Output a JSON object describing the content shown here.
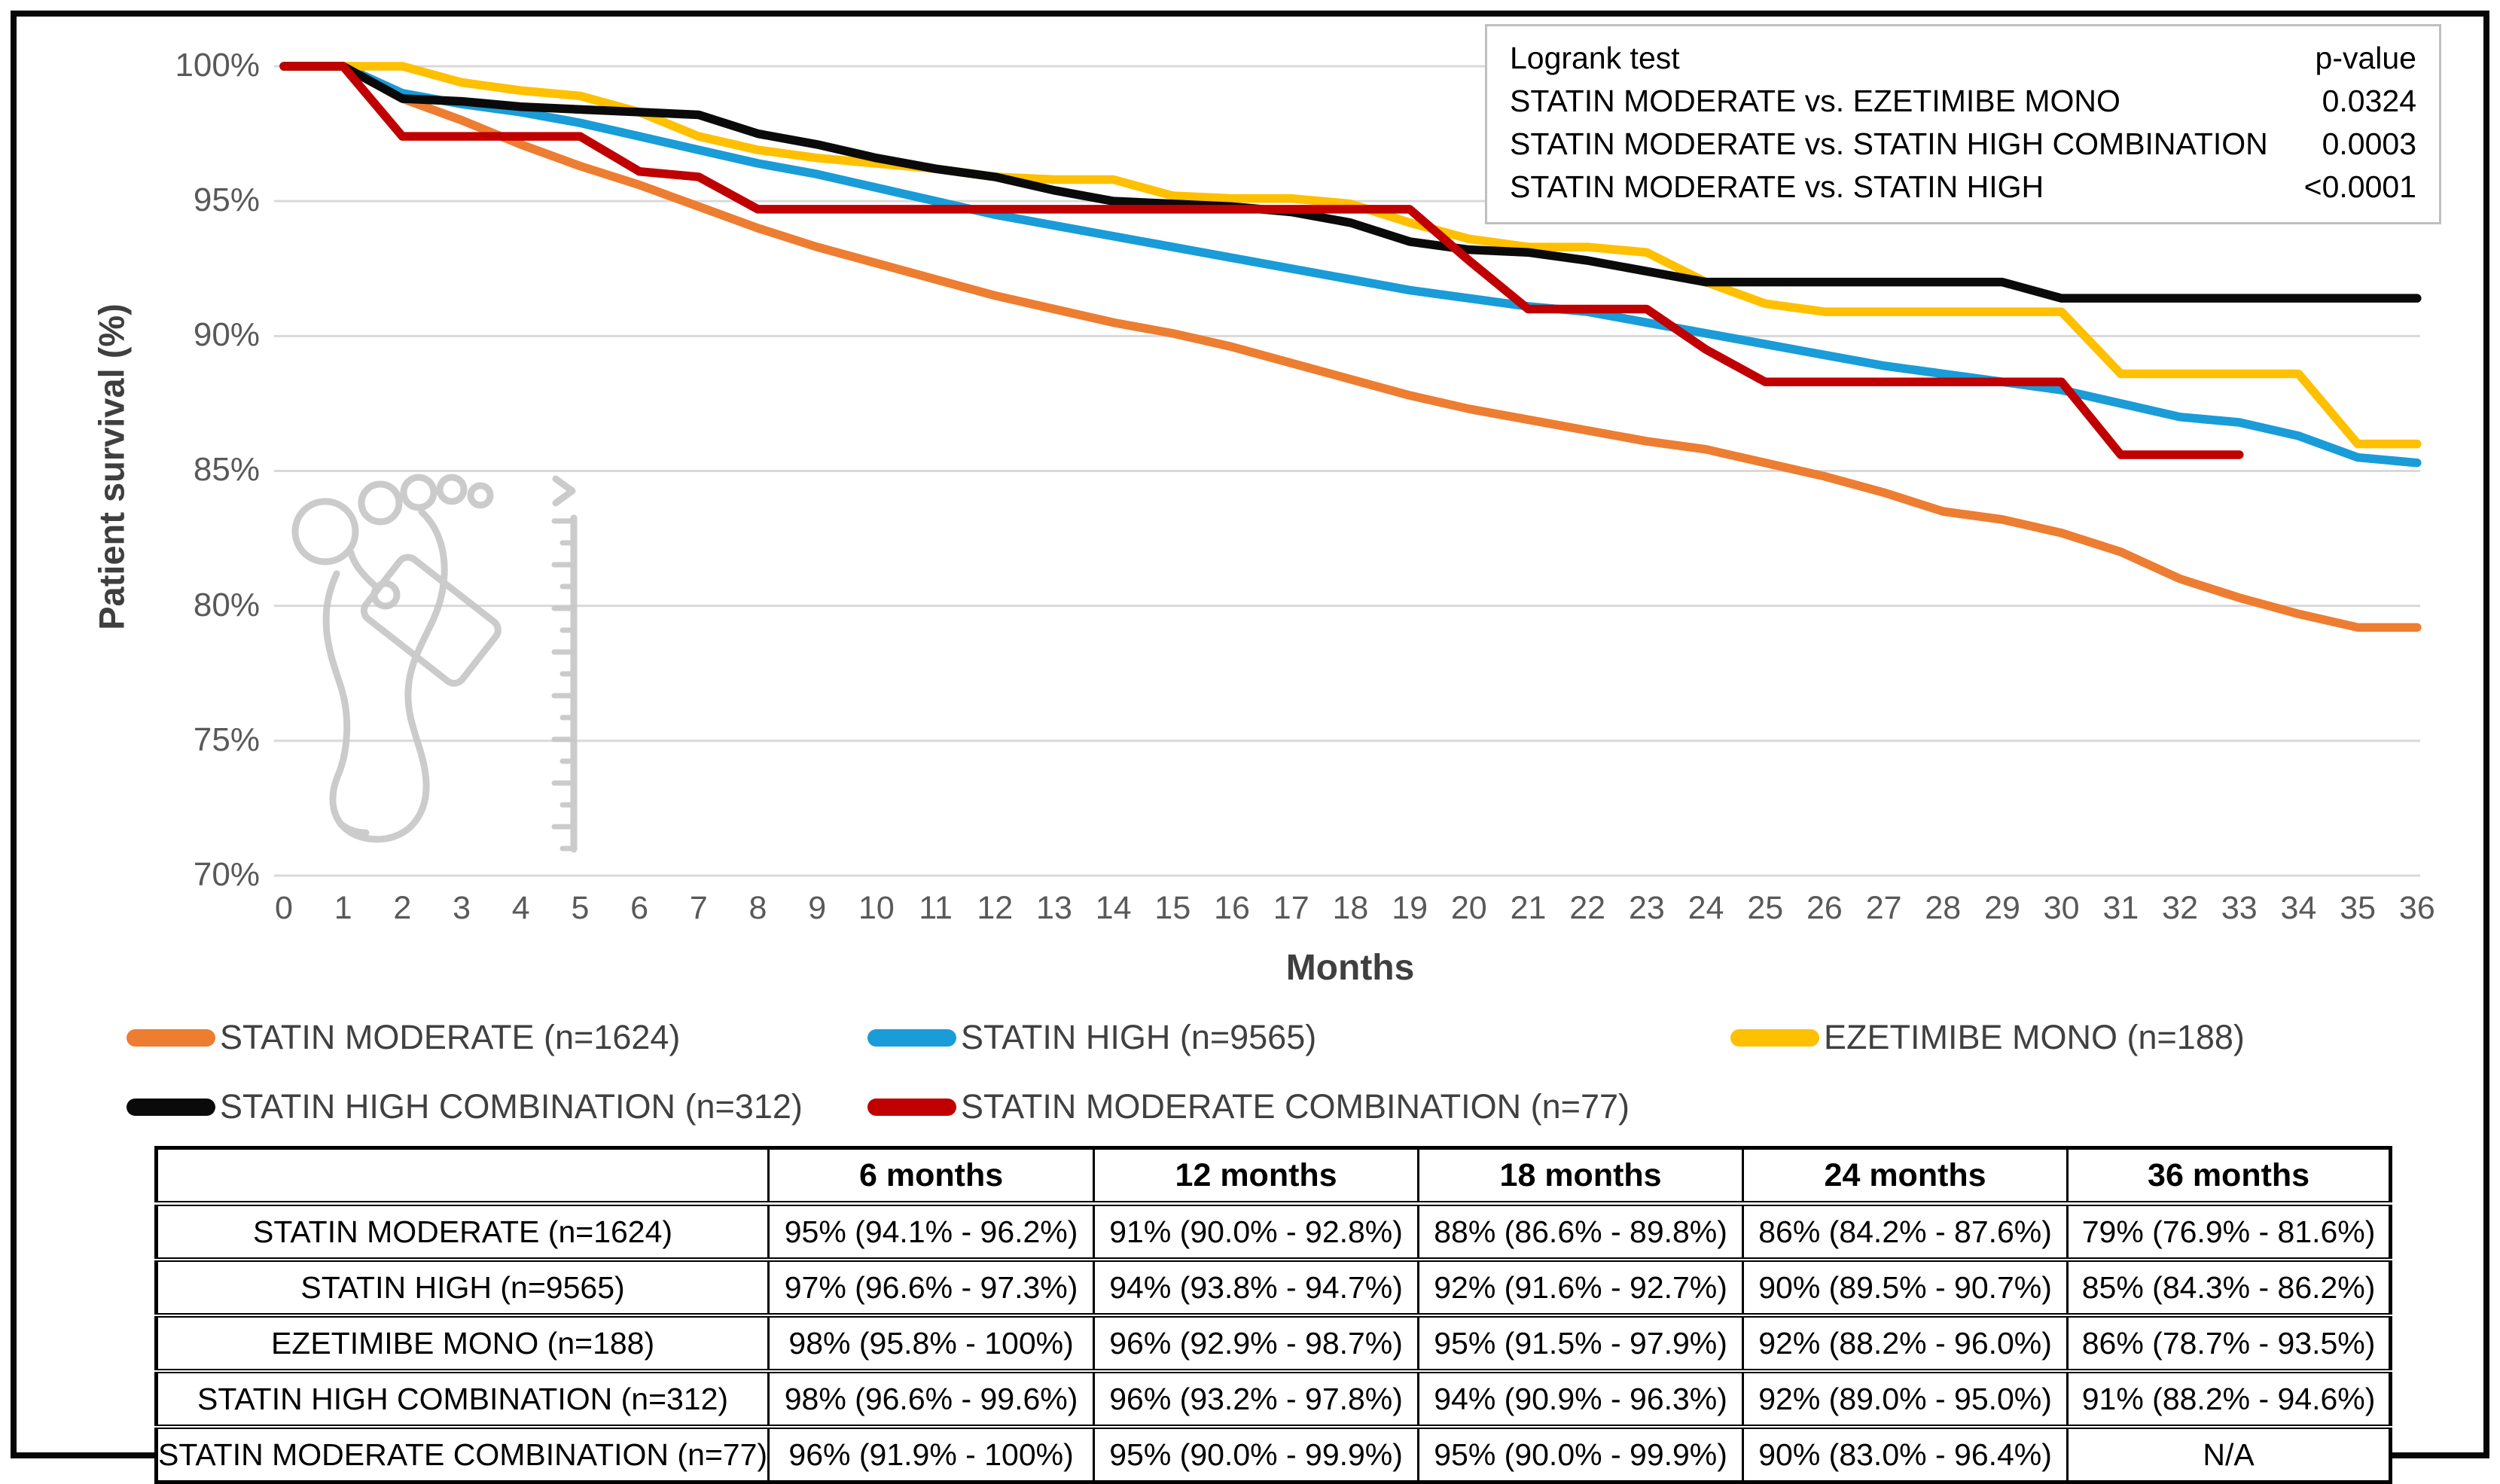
{
  "colors": {
    "statin_moderate": "#ED7D31",
    "statin_high": "#199CD8",
    "ezetimibe_mono": "#FFC000",
    "statin_high_combination": "#0A0A0A",
    "statin_moderate_combination": "#C00000",
    "gridline": "#D9D9D9",
    "tick_text": "#595959",
    "axis_title_text": "#3F3F3F",
    "watermark": "#C6C6C6",
    "logrank_border": "#BFBFBF"
  },
  "chart_data": {
    "type": "line",
    "title": "",
    "xlabel": "Months",
    "ylabel": "Patient survival (%)",
    "ylim": [
      70,
      100
    ],
    "y_tick_values": [
      100,
      95,
      90,
      85,
      80,
      75,
      70
    ],
    "y_tick_labels": [
      "100%",
      "95%",
      "90%",
      "85%",
      "80%",
      "75%",
      "70%"
    ],
    "x_ticks": [
      0,
      1,
      2,
      3,
      4,
      5,
      6,
      7,
      8,
      9,
      10,
      11,
      12,
      13,
      14,
      15,
      16,
      17,
      18,
      19,
      20,
      21,
      22,
      23,
      24,
      25,
      26,
      27,
      28,
      29,
      30,
      31,
      32,
      33,
      34,
      35,
      36
    ],
    "grid": "horizontal-only",
    "legend_position": "below",
    "series": [
      {
        "name": "STATIN MODERATE (n=1624)",
        "color_key": "statin_moderate",
        "values": [
          100,
          100,
          98.8,
          98.0,
          97.1,
          96.3,
          95.6,
          94.8,
          94.0,
          93.3,
          92.7,
          92.1,
          91.5,
          91.0,
          90.5,
          90.1,
          89.6,
          89.0,
          88.4,
          87.8,
          87.3,
          86.9,
          86.5,
          86.1,
          85.8,
          85.3,
          84.8,
          84.2,
          83.5,
          83.2,
          82.7,
          82.0,
          81.0,
          80.3,
          79.7,
          79.2,
          79.2
        ]
      },
      {
        "name": "STATIN HIGH (n=9565)",
        "color_key": "statin_high",
        "values": [
          100,
          100,
          99.0,
          98.6,
          98.3,
          97.9,
          97.4,
          96.9,
          96.4,
          96.0,
          95.5,
          95.0,
          94.5,
          94.1,
          93.7,
          93.3,
          92.9,
          92.5,
          92.1,
          91.7,
          91.4,
          91.1,
          90.9,
          90.5,
          90.1,
          89.7,
          89.3,
          88.9,
          88.6,
          88.3,
          88.0,
          87.5,
          87.0,
          86.8,
          86.3,
          85.5,
          85.3
        ]
      },
      {
        "name": "EZETIMIBE MONO (n=188)",
        "color_key": "ezetimibe_mono",
        "values": [
          100,
          100,
          100,
          99.4,
          99.1,
          98.9,
          98.3,
          97.4,
          96.9,
          96.6,
          96.4,
          96.2,
          95.9,
          95.8,
          95.8,
          95.2,
          95.1,
          95.1,
          94.9,
          94.2,
          93.6,
          93.3,
          93.3,
          93.1,
          92.0,
          91.2,
          90.9,
          90.9,
          90.9,
          90.9,
          90.9,
          88.6,
          88.6,
          88.6,
          88.6,
          86.0,
          86.0
        ]
      },
      {
        "name": "STATIN HIGH COMBINATION (n=312)",
        "color_key": "statin_high_combination",
        "values": [
          100,
          100,
          98.8,
          98.7,
          98.5,
          98.4,
          98.3,
          98.2,
          97.5,
          97.1,
          96.6,
          96.2,
          95.9,
          95.4,
          95.0,
          94.9,
          94.8,
          94.6,
          94.2,
          93.5,
          93.2,
          93.1,
          92.8,
          92.4,
          92.0,
          92.0,
          92.0,
          92.0,
          92.0,
          92.0,
          91.4,
          91.4,
          91.4,
          91.4,
          91.4,
          91.4,
          91.4
        ]
      },
      {
        "name": "STATIN MODERATE COMBINATION (n=77)",
        "color_key": "statin_moderate_combination",
        "values": [
          100,
          100,
          97.4,
          97.4,
          97.4,
          97.4,
          96.1,
          95.9,
          94.7,
          94.7,
          94.7,
          94.7,
          94.7,
          94.7,
          94.7,
          94.7,
          94.7,
          94.7,
          94.7,
          94.7,
          92.8,
          91.0,
          91.0,
          91.0,
          89.5,
          88.3,
          88.3,
          88.3,
          88.3,
          88.3,
          88.3,
          85.6,
          85.6,
          85.6,
          null,
          null,
          null
        ]
      }
    ]
  },
  "logrank_box": {
    "title": "Logrank test",
    "value_header": "p-value",
    "rows": [
      {
        "label": "STATIN MODERATE vs. EZETIMIBE MONO",
        "value": "0.0324"
      },
      {
        "label": "STATIN MODERATE vs. STATIN HIGH COMBINATION",
        "value": "0.0003"
      },
      {
        "label": "STATIN MODERATE vs. STATIN HIGH",
        "value": "<0.0001"
      }
    ]
  },
  "legend": {
    "items": [
      {
        "label": "STATIN MODERATE (n=1624)",
        "color_key": "statin_moderate"
      },
      {
        "label": "STATIN HIGH (n=9565)",
        "color_key": "statin_high"
      },
      {
        "label": "EZETIMIBE MONO (n=188)",
        "color_key": "ezetimibe_mono"
      },
      {
        "label": "STATIN HIGH COMBINATION (n=312)",
        "color_key": "statin_high_combination"
      },
      {
        "label": "STATIN MODERATE COMBINATION (n=77)",
        "color_key": "statin_moderate_combination"
      }
    ]
  },
  "table": {
    "headers": [
      "",
      "6 months",
      "12 months",
      "18 months",
      "24 months",
      "36 months"
    ],
    "rows": [
      {
        "label": "STATIN MODERATE (n=1624)",
        "cells": [
          "95% (94.1% - 96.2%)",
          "91% (90.0% - 92.8%)",
          "88% (86.6% - 89.8%)",
          "86% (84.2% - 87.6%)",
          "79% (76.9% - 81.6%)"
        ]
      },
      {
        "label": "STATIN HIGH (n=9565)",
        "cells": [
          "97% (96.6% - 97.3%)",
          "94% (93.8% - 94.7%)",
          "92% (91.6% - 92.7%)",
          "90% (89.5% - 90.7%)",
          "85% (84.3% - 86.2%)"
        ]
      },
      {
        "label": "EZETIMIBE MONO (n=188)",
        "cells": [
          "98% (95.8% - 100%)",
          "96% (92.9% - 98.7%)",
          "95% (91.5% - 97.9%)",
          "92% (88.2% - 96.0%)",
          "86% (78.7% - 93.5%)"
        ]
      },
      {
        "label": "STATIN HIGH COMBINATION (n=312)",
        "cells": [
          "98% (96.6% - 99.6%)",
          "96% (93.2% - 97.8%)",
          "94% (90.9% - 96.3%)",
          "92% (89.0% - 95.0%)",
          "91% (88.2% - 94.6%)"
        ]
      },
      {
        "label": "STATIN MODERATE COMBINATION (n=77)",
        "cells": [
          "96% (91.9% - 100%)",
          "95% (90.0% - 99.9%)",
          "95% (90.0% - 99.9%)",
          "90% (83.0% - 96.4%)",
          "N/A"
        ]
      }
    ]
  },
  "watermark": {
    "name": "footprint-with-toe-tag-and-ruler"
  }
}
